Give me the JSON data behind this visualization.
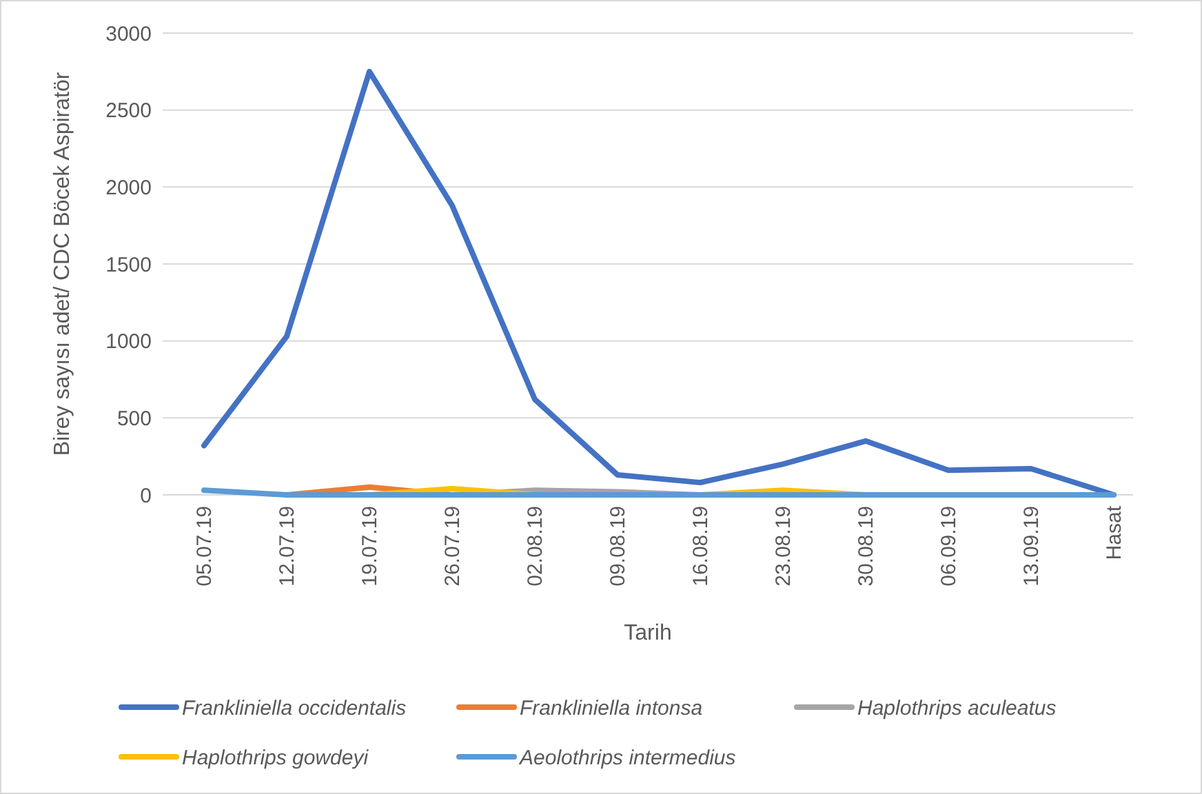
{
  "chart_data": {
    "type": "line",
    "xlabel": "Tarih",
    "ylabel": "Birey sayısı adet/ CDC Böcek Aspiratör",
    "categories": [
      "05.07.19",
      "12.07.19",
      "19.07.19",
      "26.07.19",
      "02.08.19",
      "09.08.19",
      "16.08.19",
      "23.08.19",
      "30.08.19",
      "06.09.19",
      "13.09.19",
      "Hasat"
    ],
    "series": [
      {
        "name": "Frankliniella occidentalis",
        "color": "#4472c4",
        "values": [
          320,
          1030,
          2750,
          1880,
          620,
          130,
          80,
          200,
          350,
          160,
          170,
          0
        ]
      },
      {
        "name": "Frankliniella intonsa",
        "color": "#ed7d31",
        "values": [
          null,
          0,
          50,
          0,
          null,
          null,
          null,
          null,
          null,
          null,
          null,
          null
        ]
      },
      {
        "name": "Haplothrips aculeatus",
        "color": "#a5a5a5",
        "values": [
          null,
          null,
          null,
          0,
          30,
          20,
          0,
          null,
          null,
          null,
          null,
          null
        ]
      },
      {
        "name": "Haplothrips gowdeyi",
        "color": "#ffc000",
        "values": [
          null,
          null,
          0,
          40,
          0,
          null,
          0,
          30,
          0,
          null,
          null,
          null
        ]
      },
      {
        "name": "Aeolothrips intermedius",
        "color": "#5b9bd5",
        "values": [
          30,
          0,
          0,
          0,
          0,
          0,
          0,
          0,
          0,
          0,
          0,
          0
        ]
      }
    ],
    "ylim": [
      0,
      3000
    ],
    "yticks": [
      0,
      500,
      1000,
      1500,
      2000,
      2500,
      3000
    ],
    "grid": "y",
    "legend": "bottom",
    "marker": "none",
    "line_style": "solid"
  }
}
